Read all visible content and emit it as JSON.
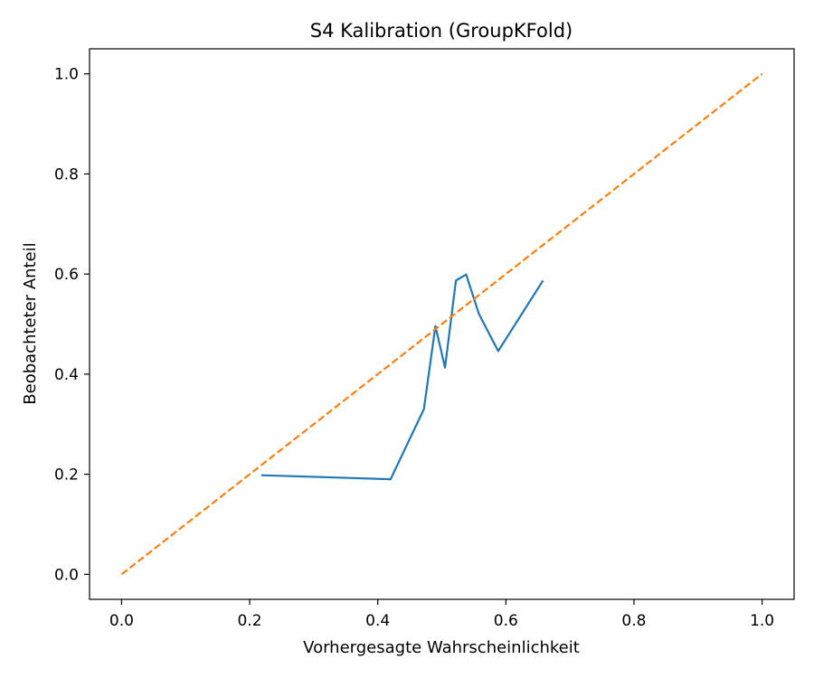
{
  "chart_data": {
    "type": "line",
    "title": "S4 Kalibration (GroupKFold)",
    "xlabel": "Vorhergesagte Wahrscheinlichkeit",
    "ylabel": "Beobachteter Anteil",
    "xlim": [
      -0.05,
      1.05
    ],
    "ylim": [
      -0.05,
      1.05
    ],
    "xticks": [
      0.0,
      0.2,
      0.4,
      0.6,
      0.8,
      1.0
    ],
    "xtick_labels": [
      "0.0",
      "0.2",
      "0.4",
      "0.6",
      "0.8",
      "1.0"
    ],
    "yticks": [
      0.0,
      0.2,
      0.4,
      0.6,
      0.8,
      1.0
    ],
    "ytick_labels": [
      "0.0",
      "0.2",
      "0.4",
      "0.6",
      "0.8",
      "1.0"
    ],
    "grid": false,
    "series": [
      {
        "color": "#1f77b4",
        "style": "solid",
        "x": [
          0.218,
          0.42,
          0.472,
          0.49,
          0.505,
          0.522,
          0.538,
          0.558,
          0.588,
          0.658
        ],
        "y": [
          0.198,
          0.19,
          0.33,
          0.496,
          0.413,
          0.587,
          0.599,
          0.52,
          0.446,
          0.587
        ]
      },
      {
        "color": "#ff7f0e",
        "style": "dashed",
        "x": [
          0.0,
          1.0
        ],
        "y": [
          0.0,
          1.0
        ]
      }
    ]
  }
}
